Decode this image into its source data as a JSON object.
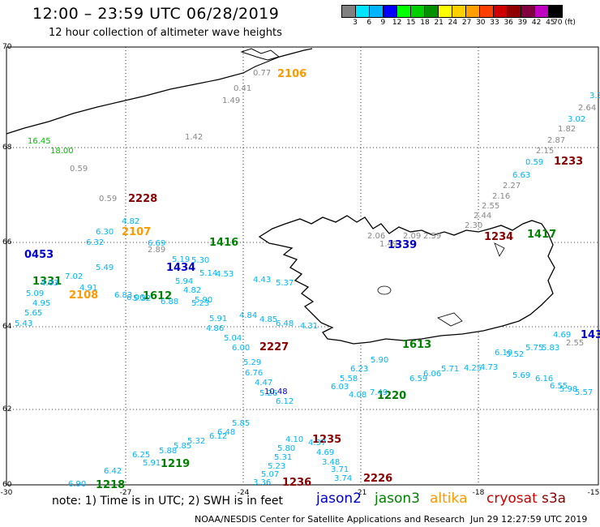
{
  "header": {
    "title": "12:00 – 23:59 UTC 06/28/2019",
    "subtitle": "12 hour collection of altimeter wave heights"
  },
  "color_scale": {
    "labels": [
      "3",
      "6",
      "9",
      "12",
      "15",
      "18",
      "21",
      "24",
      "27",
      "30",
      "33",
      "36",
      "39",
      "42",
      "45",
      "70 (ft)"
    ],
    "colors": [
      "#808080",
      "#00e5ff",
      "#00b4ff",
      "#0000ff",
      "#00ff00",
      "#00d000",
      "#009000",
      "#ffff00",
      "#ffd000",
      "#ffa000",
      "#ff4000",
      "#d00000",
      "#900000",
      "#800040",
      "#c000c0",
      "#000000"
    ]
  },
  "axes": {
    "lat_labels": [
      "70",
      "68",
      "66",
      "64",
      "62",
      "60"
    ],
    "lon_labels": [
      "-30",
      "-27",
      "-24",
      "-21",
      "-18",
      "-15"
    ]
  },
  "track_labels": [
    {
      "text": "2106",
      "color": "#ff9900"
    },
    {
      "text": "1233",
      "color": "#8b0000"
    },
    {
      "text": "2228",
      "color": "#8b0000"
    },
    {
      "text": "2107",
      "color": "#ff9900"
    },
    {
      "text": "1416",
      "color": "#008000"
    },
    {
      "text": "1234",
      "color": "#8b0000"
    },
    {
      "text": "1417",
      "color": "#008000"
    },
    {
      "text": "0453",
      "color": "#0000cc"
    },
    {
      "text": "1434",
      "color": "#0000cc"
    },
    {
      "text": "1331",
      "color": "#008000"
    },
    {
      "text": "2108",
      "color": "#ff9900"
    },
    {
      "text": "1612",
      "color": "#008000"
    },
    {
      "text": "1339",
      "color": "#0000cc"
    },
    {
      "text": "2227",
      "color": "#8b0000"
    },
    {
      "text": "1613",
      "color": "#008000"
    },
    {
      "text": "1220",
      "color": "#008000"
    },
    {
      "text": "1235",
      "color": "#8b0000"
    },
    {
      "text": "1219",
      "color": "#008000"
    },
    {
      "text": "1218",
      "color": "#008000"
    },
    {
      "text": "1236",
      "color": "#8b0000"
    },
    {
      "text": "2226",
      "color": "#8b0000"
    },
    {
      "text": "143",
      "color": "#0000cc"
    }
  ],
  "value_labels": [
    {
      "text": "0.77",
      "color": "#888888"
    },
    {
      "text": "0.41",
      "color": "#888888"
    },
    {
      "text": "1.49",
      "color": "#888888"
    },
    {
      "text": "1.42",
      "color": "#888888"
    },
    {
      "text": "0.59",
      "color": "#888888"
    },
    {
      "text": "0.59",
      "color": "#888888"
    },
    {
      "text": "16.45",
      "color": "#00c000"
    },
    {
      "text": "18.00",
      "color": "#00c000"
    },
    {
      "text": "3.3",
      "color": "#00b4ff"
    },
    {
      "text": "2.64",
      "color": "#888888"
    },
    {
      "text": "3.02",
      "color": "#00b4ff"
    },
    {
      "text": "1.82",
      "color": "#888888"
    },
    {
      "text": "2.87",
      "color": "#888888"
    },
    {
      "text": "2.15",
      "color": "#888888"
    },
    {
      "text": "0.59",
      "color": "#00b4ff"
    },
    {
      "text": "6.63",
      "color": "#00b4ff"
    },
    {
      "text": "2.27",
      "color": "#888888"
    },
    {
      "text": "2.16",
      "color": "#888888"
    },
    {
      "text": "2.55",
      "color": "#888888"
    },
    {
      "text": "2.44",
      "color": "#888888"
    },
    {
      "text": "2.30",
      "color": "#888888"
    },
    {
      "text": "2.06",
      "color": "#888888"
    },
    {
      "text": "2.09",
      "color": "#888888"
    },
    {
      "text": "2.59",
      "color": "#888888"
    },
    {
      "text": "1.49",
      "color": "#888888"
    },
    {
      "text": "4.82",
      "color": "#00b4ff"
    },
    {
      "text": "6.30",
      "color": "#00b4ff"
    },
    {
      "text": "6.32",
      "color": "#00b4ff"
    },
    {
      "text": "5.43",
      "color": "#00b4ff"
    },
    {
      "text": "5.65",
      "color": "#00b4ff"
    },
    {
      "text": "4.95",
      "color": "#00b4ff"
    },
    {
      "text": "5.09",
      "color": "#00b4ff"
    },
    {
      "text": "6.83",
      "color": "#00b4ff"
    },
    {
      "text": "5.94",
      "color": "#00b4ff"
    },
    {
      "text": "4.82",
      "color": "#00b4ff"
    },
    {
      "text": "5.90",
      "color": "#00b4ff"
    },
    {
      "text": "5.91",
      "color": "#00b4ff"
    },
    {
      "text": "4.86",
      "color": "#00b4ff"
    },
    {
      "text": "5.04",
      "color": "#00b4ff"
    },
    {
      "text": "6.00",
      "color": "#00b4ff"
    },
    {
      "text": "5.29",
      "color": "#00b4ff"
    },
    {
      "text": "6.76",
      "color": "#00b4ff"
    },
    {
      "text": "4.47",
      "color": "#00b4ff"
    },
    {
      "text": "5.26",
      "color": "#00b4ff"
    },
    {
      "text": "10.48",
      "color": "#0000cc"
    },
    {
      "text": "6.12",
      "color": "#00b4ff"
    },
    {
      "text": "4.10",
      "color": "#00b4ff"
    },
    {
      "text": "5.80",
      "color": "#00b4ff"
    },
    {
      "text": "5.31",
      "color": "#00b4ff"
    },
    {
      "text": "5.23",
      "color": "#00b4ff"
    },
    {
      "text": "5.07",
      "color": "#00b4ff"
    },
    {
      "text": "3.36",
      "color": "#00b4ff"
    },
    {
      "text": "4.37",
      "color": "#00b4ff"
    },
    {
      "text": "4.69",
      "color": "#00b4ff"
    },
    {
      "text": "3.48",
      "color": "#00b4ff"
    },
    {
      "text": "3.71",
      "color": "#00b4ff"
    },
    {
      "text": "3.74",
      "color": "#00b4ff"
    },
    {
      "text": "6.90",
      "color": "#00b4ff"
    },
    {
      "text": "6.42",
      "color": "#00b4ff"
    },
    {
      "text": "6.25",
      "color": "#00b4ff"
    },
    {
      "text": "5.91",
      "color": "#00b4ff"
    },
    {
      "text": "5.88",
      "color": "#00b4ff"
    },
    {
      "text": "5.85",
      "color": "#00b4ff"
    },
    {
      "text": "5.32",
      "color": "#00b4ff"
    },
    {
      "text": "6.12",
      "color": "#00b4ff"
    },
    {
      "text": "6.48",
      "color": "#00b4ff"
    },
    {
      "text": "5.85",
      "color": "#00b4ff"
    },
    {
      "text": "5.90",
      "color": "#00b4ff"
    },
    {
      "text": "6.23",
      "color": "#00b4ff"
    },
    {
      "text": "5.58",
      "color": "#00b4ff"
    },
    {
      "text": "6.03",
      "color": "#00b4ff"
    },
    {
      "text": "4.08",
      "color": "#00b4ff"
    },
    {
      "text": "7.49",
      "color": "#00b4ff"
    },
    {
      "text": "6.59",
      "color": "#00b4ff"
    },
    {
      "text": "6.06",
      "color": "#00b4ff"
    },
    {
      "text": "5.71",
      "color": "#00b4ff"
    },
    {
      "text": "4.25",
      "color": "#00b4ff"
    },
    {
      "text": "4.73",
      "color": "#00b4ff"
    },
    {
      "text": "6.19",
      "color": "#00b4ff"
    },
    {
      "text": "5.69",
      "color": "#00b4ff"
    },
    {
      "text": "6.16",
      "color": "#00b4ff"
    },
    {
      "text": "6.55",
      "color": "#00b4ff"
    },
    {
      "text": "5.98",
      "color": "#00b4ff"
    },
    {
      "text": "5.57",
      "color": "#00b4ff"
    },
    {
      "text": "5.52",
      "color": "#00b4ff"
    },
    {
      "text": "5.75",
      "color": "#00b4ff"
    },
    {
      "text": "5.83",
      "color": "#00b4ff"
    },
    {
      "text": "2.55",
      "color": "#888888"
    },
    {
      "text": "4.69",
      "color": "#00b4ff"
    },
    {
      "text": "5.37",
      "color": "#00b4ff"
    },
    {
      "text": "6.48",
      "color": "#00b4ff"
    },
    {
      "text": "4.85",
      "color": "#00b4ff"
    },
    {
      "text": "4.31",
      "color": "#00b4ff"
    },
    {
      "text": "4.84",
      "color": "#00b4ff"
    },
    {
      "text": "4.43",
      "color": "#00b4ff"
    },
    {
      "text": "4.53",
      "color": "#00b4ff"
    },
    {
      "text": "5.14",
      "color": "#00b4ff"
    },
    {
      "text": "5.30",
      "color": "#00b4ff"
    },
    {
      "text": "5.23",
      "color": "#00b4ff"
    },
    {
      "text": "6.88",
      "color": "#00b4ff"
    },
    {
      "text": "5.32",
      "color": "#00b4ff"
    },
    {
      "text": "4.91",
      "color": "#00b4ff"
    },
    {
      "text": "5.49",
      "color": "#00b4ff"
    },
    {
      "text": "2.89",
      "color": "#888888"
    },
    {
      "text": "5.19",
      "color": "#00b4ff"
    },
    {
      "text": "6.69",
      "color": "#00b4ff"
    },
    {
      "text": "6.06",
      "color": "#00b4ff"
    },
    {
      "text": "4.03",
      "color": "#00b4ff"
    },
    {
      "text": "7.02",
      "color": "#00b4ff"
    }
  ],
  "footer": {
    "note": "note:  1) Time is in UTC;  2) SWH is in feet",
    "legend": [
      {
        "text": "jason2",
        "color": "#0000cc"
      },
      {
        "text": "jason3",
        "color": "#008000"
      },
      {
        "text": "altika",
        "color": "#ff9900"
      },
      {
        "text": "cryosat",
        "color": "#cc0000"
      },
      {
        "text": "s3a",
        "color": "#8b0000"
      }
    ],
    "credit": "NOAA/NESDIS Center for Satellite Applications and Research",
    "timestamp": "Jun 29 12:27:59 UTC 2019"
  }
}
